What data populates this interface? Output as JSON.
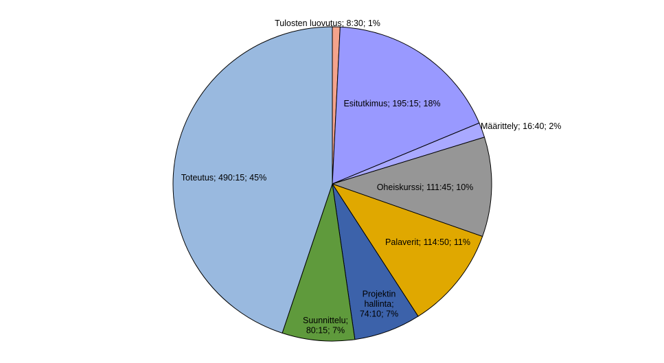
{
  "chart_data": {
    "type": "pie",
    "title": "",
    "slices": [
      {
        "name": "Tulosten luovutus",
        "value": "8:30",
        "percent": "1%",
        "label": [
          "Tulosten luovutus;  8:30;  1%"
        ],
        "color": "#F4A38C"
      },
      {
        "name": "Esitutkimus",
        "value": "195:15",
        "percent": "18%",
        "label": [
          "Esitutkimus;  195:15;  18%"
        ],
        "color": "#9999FF"
      },
      {
        "name": "Määrittely",
        "value": "16:40",
        "percent": "2%",
        "label": [
          "Määrittely;  16:40;  2%"
        ],
        "color": "#A9A9FF"
      },
      {
        "name": "Oheiskurssi",
        "value": "111:45",
        "percent": "10%",
        "label": [
          "Oheiskurssi;  111:45;  10%"
        ],
        "color": "#969696"
      },
      {
        "name": "Palaverit",
        "value": "114:50",
        "percent": "11%",
        "label": [
          "Palaverit;  114:50;  11%"
        ],
        "color": "#E0A800"
      },
      {
        "name": "Projektin hallinta",
        "value": "74:10",
        "percent": "7%",
        "label": [
          "Projektin",
          "hallinta;",
          "74:10;  7%"
        ],
        "color": "#3C62AA"
      },
      {
        "name": "Suunnittelu",
        "value": "80:15",
        "percent": "7%",
        "label": [
          "Suunnittelu;",
          "80:15;  7%"
        ],
        "color": "#5F9A3C"
      },
      {
        "name": "Toteutus",
        "value": "490:15",
        "percent": "45%",
        "label": [
          "Toteutus;  490:15;  45%"
        ],
        "color": "#99B9DF"
      }
    ]
  }
}
